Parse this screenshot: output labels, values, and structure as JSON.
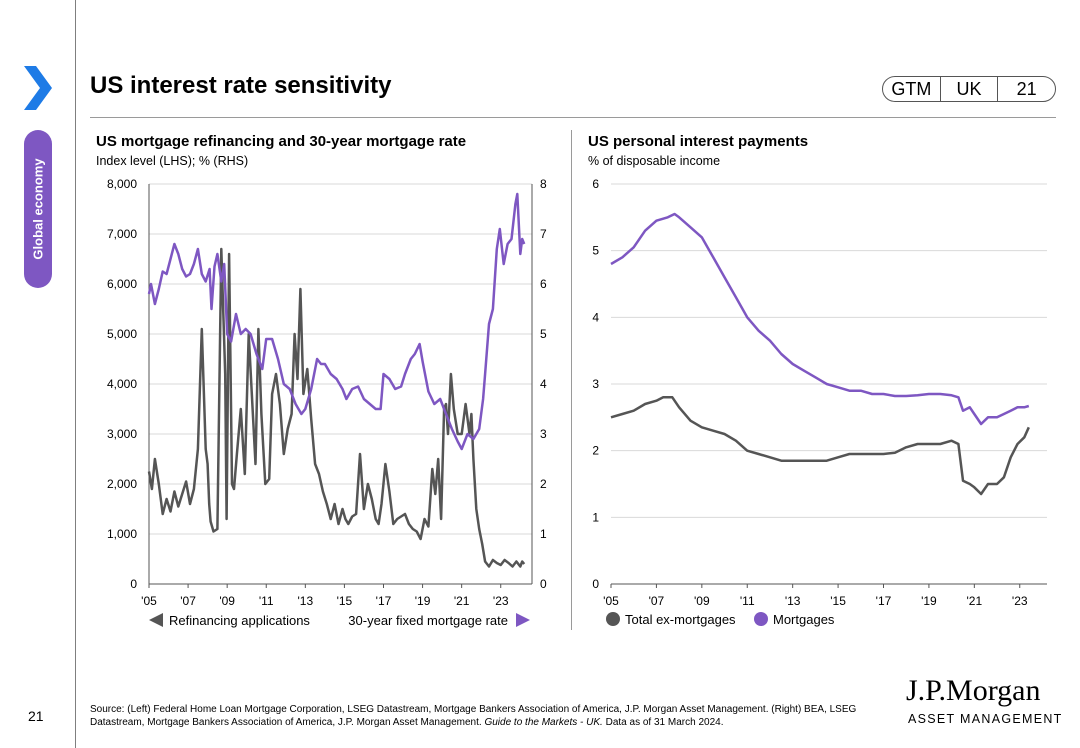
{
  "page": {
    "title": "US interest rate sensitivity",
    "section": "Global economy",
    "badge": [
      "GTM",
      "UK",
      "21"
    ],
    "page_number": "21",
    "source_prefix": "Source: (Left) Federal Home Loan Mortgage Corporation, LSEG Datastream, Mortgage Bankers Association of America, J.P. Morgan Asset Management. (Right) BEA, LSEG Datastream, Mortgage Bankers Association of America, J.P. Morgan Asset Management. ",
    "source_italic": "Guide to the Markets - UK.",
    "source_suffix": " Data as of 31 March 2024.",
    "logo_name": "J.P.Morgan",
    "logo_sub": "ASSET MANAGEMENT",
    "colors": {
      "purple": "#7e57c2",
      "grey": "#555555",
      "tab": "#7e57c2",
      "chevron": "#1e7be6"
    }
  },
  "chart_data": [
    {
      "type": "line",
      "title": "US mortgage refinancing and 30-year mortgage rate",
      "subtitle": "Index level (LHS); % (RHS)",
      "x_range": [
        2005,
        2024.6
      ],
      "xticks": [
        2005,
        2007,
        2009,
        2011,
        2013,
        2015,
        2017,
        2019,
        2021,
        2023
      ],
      "xtick_labels": [
        "'05",
        "'07",
        "'09",
        "'11",
        "'13",
        "'15",
        "'17",
        "'19",
        "'21",
        "'23"
      ],
      "ylim_left": [
        0,
        8000
      ],
      "yticks_left": [
        0,
        1000,
        2000,
        3000,
        4000,
        5000,
        6000,
        7000,
        8000
      ],
      "ytick_labels_left": [
        "0",
        "1,000",
        "2,000",
        "3,000",
        "4,000",
        "5,000",
        "6,000",
        "7,000",
        "8,000"
      ],
      "ylim_right": [
        0,
        8
      ],
      "yticks_right": [
        0,
        1,
        2,
        3,
        4,
        5,
        6,
        7,
        8
      ],
      "ytick_labels_right": [
        "0",
        "1",
        "2",
        "3",
        "4",
        "5",
        "6",
        "7",
        "8"
      ],
      "legend": [
        "Refinancing applications",
        "30-year fixed mortgage rate"
      ],
      "series": [
        {
          "name": "Refinancing applications",
          "axis": "left",
          "color": "#555555",
          "x": [
            2005.0,
            2005.15,
            2005.3,
            2005.5,
            2005.7,
            2005.9,
            2006.1,
            2006.3,
            2006.5,
            2006.7,
            2006.9,
            2007.1,
            2007.3,
            2007.5,
            2007.7,
            2007.9,
            2008.0,
            2008.08,
            2008.15,
            2008.3,
            2008.5,
            2008.7,
            2008.9,
            2008.97,
            2009.1,
            2009.25,
            2009.35,
            2009.5,
            2009.7,
            2009.9,
            2010.1,
            2010.3,
            2010.45,
            2010.6,
            2010.75,
            2010.95,
            2011.15,
            2011.3,
            2011.5,
            2011.7,
            2011.9,
            2012.1,
            2012.3,
            2012.45,
            2012.6,
            2012.75,
            2012.9,
            2013.1,
            2013.3,
            2013.5,
            2013.7,
            2013.9,
            2014.1,
            2014.3,
            2014.5,
            2014.7,
            2014.9,
            2015.05,
            2015.2,
            2015.4,
            2015.6,
            2015.8,
            2016.0,
            2016.2,
            2016.4,
            2016.6,
            2016.75,
            2016.9,
            2017.1,
            2017.3,
            2017.5,
            2017.7,
            2017.9,
            2018.1,
            2018.3,
            2018.5,
            2018.7,
            2018.9,
            2019.1,
            2019.3,
            2019.5,
            2019.65,
            2019.8,
            2019.95,
            2020.1,
            2020.2,
            2020.3,
            2020.45,
            2020.6,
            2020.8,
            2021.0,
            2021.2,
            2021.4,
            2021.5,
            2021.6,
            2021.75,
            2021.9,
            2022.05,
            2022.2,
            2022.4,
            2022.6,
            2022.8,
            2023.0,
            2023.2,
            2023.4,
            2023.6,
            2023.8,
            2024.0,
            2024.1,
            2024.2
          ],
          "values": [
            2250,
            1900,
            2500,
            2000,
            1400,
            1700,
            1450,
            1850,
            1550,
            1800,
            2050,
            1600,
            1900,
            2700,
            5100,
            2700,
            2400,
            1600,
            1250,
            1050,
            1100,
            6700,
            4200,
            1300,
            6600,
            2000,
            1900,
            2600,
            3500,
            2200,
            5000,
            3500,
            2400,
            5100,
            3400,
            2000,
            2100,
            3800,
            4200,
            3600,
            2600,
            3100,
            3400,
            5000,
            4100,
            5900,
            3800,
            4300,
            3300,
            2400,
            2200,
            1850,
            1600,
            1300,
            1600,
            1200,
            1500,
            1300,
            1200,
            1350,
            1400,
            2600,
            1500,
            2000,
            1700,
            1300,
            1200,
            1600,
            2400,
            1850,
            1200,
            1300,
            1350,
            1400,
            1200,
            1100,
            1050,
            900,
            1300,
            1150,
            2300,
            1800,
            2500,
            1300,
            3500,
            3600,
            3000,
            4200,
            3500,
            3000,
            3000,
            3600,
            3000,
            3400,
            2500,
            1500,
            1100,
            800,
            450,
            350,
            480,
            420,
            380,
            480,
            420,
            350,
            450,
            350,
            450,
            400
          ]
        },
        {
          "name": "30-year fixed mortgage rate",
          "axis": "right",
          "color": "#7e57c2",
          "x": [
            2005.0,
            2005.1,
            2005.3,
            2005.5,
            2005.7,
            2005.9,
            2006.1,
            2006.3,
            2006.5,
            2006.7,
            2006.9,
            2007.1,
            2007.3,
            2007.5,
            2007.7,
            2007.9,
            2008.1,
            2008.2,
            2008.35,
            2008.5,
            2008.7,
            2008.85,
            2009.0,
            2009.2,
            2009.45,
            2009.7,
            2009.95,
            2010.2,
            2010.5,
            2010.8,
            2011.0,
            2011.3,
            2011.6,
            2011.9,
            2012.2,
            2012.5,
            2012.8,
            2013.0,
            2013.3,
            2013.6,
            2013.8,
            2014.0,
            2014.3,
            2014.6,
            2014.9,
            2015.1,
            2015.4,
            2015.7,
            2016.0,
            2016.3,
            2016.6,
            2016.85,
            2017.0,
            2017.3,
            2017.6,
            2017.9,
            2018.1,
            2018.4,
            2018.6,
            2018.85,
            2019.0,
            2019.3,
            2019.6,
            2019.9,
            2020.2,
            2020.5,
            2020.8,
            2021.0,
            2021.3,
            2021.6,
            2021.9,
            2022.1,
            2022.2,
            2022.4,
            2022.6,
            2022.8,
            2022.95,
            2023.15,
            2023.35,
            2023.55,
            2023.75,
            2023.85,
            2024.0,
            2024.1,
            2024.2
          ],
          "values": [
            5.8,
            6.0,
            5.6,
            5.9,
            6.25,
            6.2,
            6.5,
            6.8,
            6.6,
            6.3,
            6.15,
            6.2,
            6.4,
            6.7,
            6.2,
            6.05,
            6.3,
            5.5,
            6.35,
            6.6,
            6.05,
            6.4,
            5.0,
            4.85,
            5.4,
            5.0,
            5.1,
            5.0,
            4.6,
            4.3,
            4.9,
            4.9,
            4.5,
            4.0,
            3.9,
            3.6,
            3.4,
            3.5,
            3.9,
            4.5,
            4.4,
            4.4,
            4.2,
            4.1,
            3.9,
            3.7,
            3.9,
            3.95,
            3.7,
            3.6,
            3.5,
            3.5,
            4.2,
            4.1,
            3.9,
            3.95,
            4.2,
            4.5,
            4.6,
            4.8,
            4.45,
            3.85,
            3.6,
            3.7,
            3.4,
            3.1,
            2.85,
            2.7,
            3.0,
            2.9,
            3.1,
            3.7,
            4.2,
            5.2,
            5.5,
            6.7,
            7.1,
            6.4,
            6.8,
            6.9,
            7.6,
            7.8,
            6.6,
            6.9,
            6.8
          ]
        }
      ]
    },
    {
      "type": "line",
      "title": "US personal interest payments",
      "subtitle": "% of disposable income",
      "x_range": [
        2005,
        2024.2
      ],
      "xticks": [
        2005,
        2007,
        2009,
        2011,
        2013,
        2015,
        2017,
        2019,
        2021,
        2023
      ],
      "xtick_labels": [
        "'05",
        "'07",
        "'09",
        "'11",
        "'13",
        "'15",
        "'17",
        "'19",
        "'21",
        "'23"
      ],
      "ylim": [
        0,
        6
      ],
      "yticks": [
        0,
        1,
        2,
        3,
        4,
        5,
        6
      ],
      "ytick_labels": [
        "0",
        "1",
        "2",
        "3",
        "4",
        "5",
        "6"
      ],
      "legend": [
        "Total ex-mortgages",
        "Mortgages"
      ],
      "series": [
        {
          "name": "Total ex-mortgages",
          "color": "#555555",
          "x": [
            2005.0,
            2005.5,
            2006.0,
            2006.5,
            2007.0,
            2007.3,
            2007.7,
            2008.0,
            2008.5,
            2009.0,
            2009.5,
            2010.0,
            2010.5,
            2011.0,
            2011.5,
            2012.0,
            2012.5,
            2013.0,
            2013.5,
            2014.0,
            2014.5,
            2015.0,
            2015.5,
            2016.0,
            2016.5,
            2017.0,
            2017.5,
            2018.0,
            2018.5,
            2019.0,
            2019.5,
            2020.0,
            2020.3,
            2020.5,
            2020.8,
            2021.0,
            2021.3,
            2021.6,
            2022.0,
            2022.3,
            2022.6,
            2022.9,
            2023.2,
            2023.4
          ],
          "values": [
            2.5,
            2.55,
            2.6,
            2.7,
            2.75,
            2.8,
            2.8,
            2.65,
            2.45,
            2.35,
            2.3,
            2.25,
            2.15,
            2.0,
            1.95,
            1.9,
            1.85,
            1.85,
            1.85,
            1.85,
            1.85,
            1.9,
            1.95,
            1.95,
            1.95,
            1.95,
            1.97,
            2.05,
            2.1,
            2.1,
            2.1,
            2.15,
            2.1,
            1.55,
            1.5,
            1.45,
            1.35,
            1.5,
            1.5,
            1.6,
            1.9,
            2.1,
            2.2,
            2.35
          ]
        },
        {
          "name": "Mortgages",
          "color": "#7e57c2",
          "x": [
            2005.0,
            2005.5,
            2006.0,
            2006.5,
            2007.0,
            2007.5,
            2007.8,
            2008.0,
            2008.5,
            2009.0,
            2009.5,
            2010.0,
            2010.5,
            2011.0,
            2011.5,
            2012.0,
            2012.5,
            2013.0,
            2013.5,
            2014.0,
            2014.5,
            2015.0,
            2015.5,
            2016.0,
            2016.5,
            2017.0,
            2017.5,
            2018.0,
            2018.5,
            2019.0,
            2019.5,
            2020.0,
            2020.3,
            2020.5,
            2020.8,
            2021.0,
            2021.3,
            2021.6,
            2022.0,
            2022.3,
            2022.6,
            2022.9,
            2023.2,
            2023.4
          ],
          "values": [
            4.8,
            4.9,
            5.05,
            5.3,
            5.45,
            5.5,
            5.55,
            5.5,
            5.35,
            5.2,
            4.9,
            4.6,
            4.3,
            4.0,
            3.8,
            3.65,
            3.45,
            3.3,
            3.2,
            3.1,
            3.0,
            2.95,
            2.9,
            2.9,
            2.85,
            2.85,
            2.82,
            2.82,
            2.83,
            2.85,
            2.85,
            2.83,
            2.8,
            2.6,
            2.65,
            2.55,
            2.4,
            2.5,
            2.5,
            2.55,
            2.6,
            2.65,
            2.65,
            2.67
          ]
        }
      ]
    }
  ]
}
